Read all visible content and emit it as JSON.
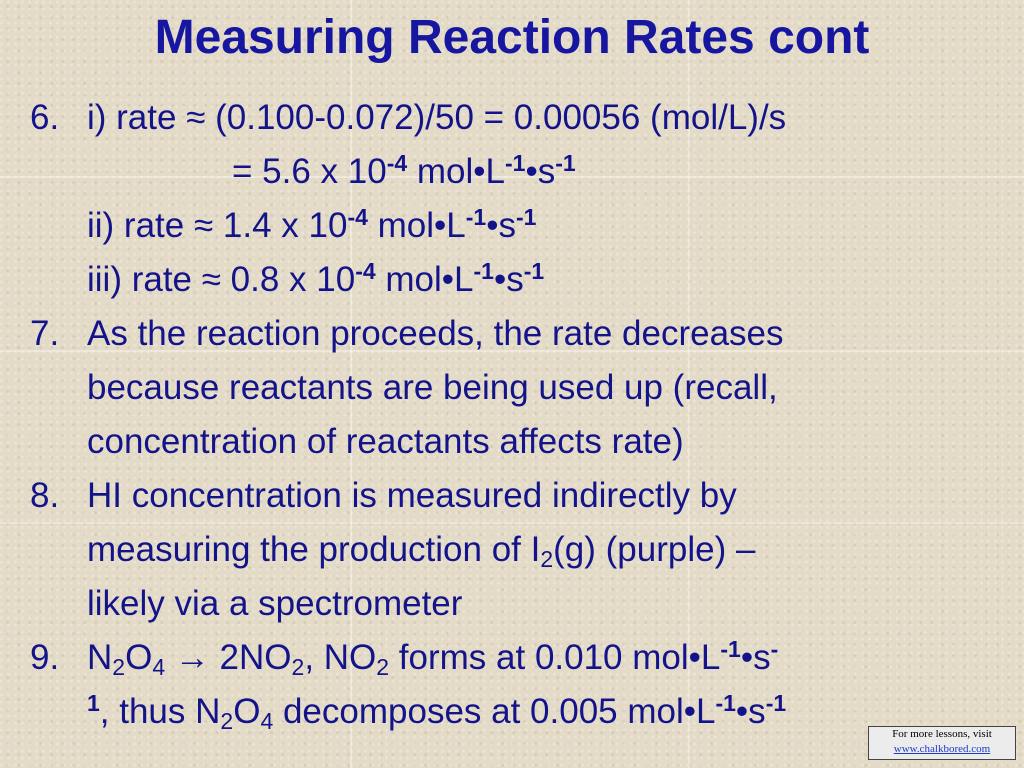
{
  "title": "Measuring Reaction Rates cont",
  "items": [
    {
      "number": "6.",
      "lines": [
        [
          "i) rate ≈ (0.100-0.072)/50 = 0.00056 (mol/L)/s"
        ],
        [
          "= 5.6 x 10",
          "-4",
          " mol•L",
          "-1",
          "•s",
          "-1"
        ],
        [
          "ii) rate ≈ 1.4 x 10",
          "-4",
          " mol•L",
          "-1",
          "•s",
          "-1"
        ],
        [
          "iii) rate ≈ 0.8 x 10",
          "-4",
          " mol•L",
          "-1",
          "•s",
          "-1"
        ]
      ]
    },
    {
      "number": "7.",
      "lines": [
        [
          "As the reaction proceeds, the rate decreases"
        ],
        [
          "because reactants are being used up (recall,"
        ],
        [
          "concentration of reactants affects rate)"
        ]
      ]
    },
    {
      "number": "8.",
      "lines": [
        [
          "HI concentration is measured indirectly by"
        ],
        [
          "measuring the production of I",
          "2",
          "(g) (purple) –"
        ],
        [
          "likely via a spectrometer"
        ]
      ]
    },
    {
      "number": "9.",
      "lines": [
        [
          "N",
          "2",
          "O",
          "4",
          " → 2NO",
          "2",
          ", NO",
          "2",
          " forms at 0.010 mol•L",
          "-1",
          "•s",
          "-"
        ],
        [
          "1",
          ", thus N",
          "2",
          "O",
          "4",
          " decomposes at 0.005 mol•L",
          "-1",
          "•s",
          "-1"
        ]
      ]
    }
  ],
  "footer": {
    "text": "For more lessons, visit",
    "link": "www.chalkbored.com"
  }
}
